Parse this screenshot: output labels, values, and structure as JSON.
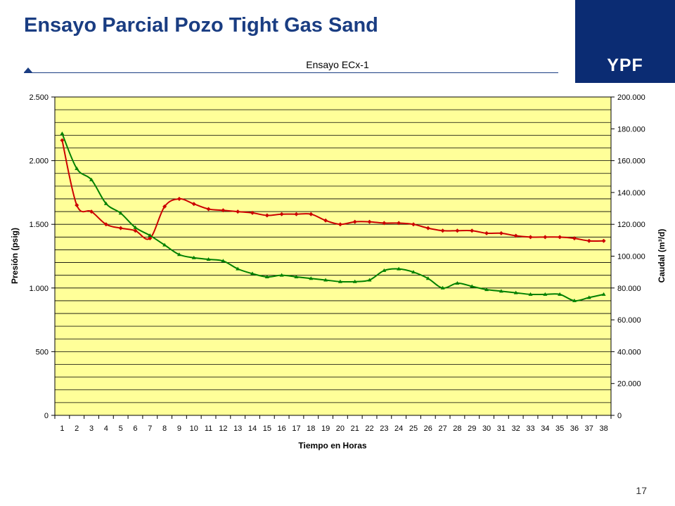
{
  "slide": {
    "title": "Ensayo Parcial Pozo Tight Gas Sand",
    "logo_text": "YPF",
    "page_number": "17"
  },
  "colors": {
    "title": "#1a3d82",
    "logo_bg": "#0b2c73",
    "plot_bg": "#ffff99",
    "pressure_series": "#cc0000",
    "flow_series": "#008000"
  },
  "chart_data": {
    "type": "line",
    "title": "Ensayo ECx-1",
    "xlabel": "Tiempo en Horas",
    "ylabel_left": "Presión (psig)",
    "ylabel_right": "Caudal (m³/d)",
    "grid": true,
    "x": [
      1,
      2,
      3,
      4,
      5,
      6,
      7,
      8,
      9,
      10,
      11,
      12,
      13,
      14,
      15,
      16,
      17,
      18,
      19,
      20,
      21,
      22,
      23,
      24,
      25,
      26,
      27,
      28,
      29,
      30,
      31,
      32,
      33,
      34,
      35,
      36,
      37,
      38
    ],
    "x_tick_labels": [
      "1",
      "2",
      "3",
      "4",
      "5",
      "6",
      "7",
      "8",
      "9",
      "10",
      "11",
      "12",
      "13",
      "14",
      "15",
      "16",
      "17",
      "18",
      "19",
      "20",
      "21",
      "22",
      "23",
      "24",
      "25",
      "26",
      "27",
      "28",
      "29",
      "30",
      "31",
      "32",
      "33",
      "34",
      "35",
      "36",
      "37",
      "38"
    ],
    "y_left": {
      "min": 0,
      "max": 2500,
      "tick_labels": [
        "0",
        "500",
        "1.000",
        "1.500",
        "2.000",
        "2.500"
      ],
      "tick_values": [
        0,
        500,
        1000,
        1500,
        2000,
        2500
      ]
    },
    "y_right": {
      "min": 0,
      "max": 200000,
      "tick_labels": [
        "0",
        "20.000",
        "40.000",
        "60.000",
        "80.000",
        "100.000",
        "120.000",
        "140.000",
        "160.000",
        "180.000",
        "200.000"
      ],
      "tick_values": [
        0,
        20000,
        40000,
        60000,
        80000,
        100000,
        120000,
        140000,
        160000,
        180000,
        200000
      ]
    },
    "series": [
      {
        "axis": "left",
        "color": "#cc0000",
        "marker": "diamond",
        "values": [
          2160,
          1650,
          1600,
          1500,
          1470,
          1450,
          1390,
          1640,
          1700,
          1660,
          1620,
          1610,
          1600,
          1590,
          1570,
          1580,
          1580,
          1580,
          1530,
          1500,
          1520,
          1520,
          1510,
          1510,
          1500,
          1470,
          1450,
          1450,
          1450,
          1430,
          1430,
          1410,
          1400,
          1400,
          1400,
          1390,
          1370,
          1370
        ]
      },
      {
        "axis": "right",
        "color": "#008000",
        "marker": "triangle",
        "values": [
          177000,
          155000,
          148000,
          133000,
          127000,
          118000,
          113000,
          107000,
          101000,
          99000,
          98000,
          97000,
          92000,
          89000,
          87000,
          88000,
          87000,
          86000,
          85000,
          84000,
          84000,
          85000,
          91000,
          92000,
          90000,
          86000,
          80000,
          83000,
          81000,
          79000,
          78000,
          77000,
          76000,
          76000,
          76000,
          72000,
          74000,
          76000
        ]
      }
    ]
  }
}
